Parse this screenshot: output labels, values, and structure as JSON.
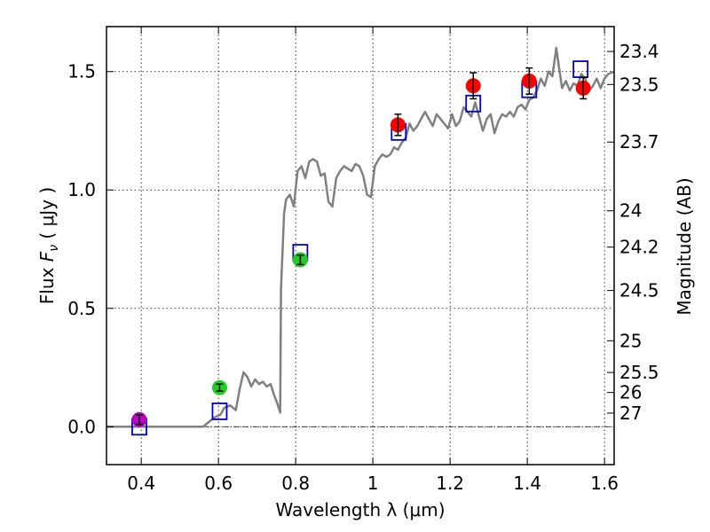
{
  "chart_data": {
    "type": "scatter",
    "xlabel": "Wavelength  λ (μm)",
    "ylabel_parts": [
      "Flux  ",
      "F",
      "ν",
      "  ( μJy )"
    ],
    "y2label": "Magnitude (AB)",
    "xlim": [
      0.31,
      1.625
    ],
    "ylim": [
      -0.16,
      1.69
    ],
    "grid": true,
    "xticks": [
      {
        "value": 0.4,
        "label": "0.4"
      },
      {
        "value": 0.6,
        "label": "0.6"
      },
      {
        "value": 0.8,
        "label": "0.8"
      },
      {
        "value": 1.0,
        "label": "1"
      },
      {
        "value": 1.2,
        "label": "1.2"
      },
      {
        "value": 1.4,
        "label": "1.4"
      },
      {
        "value": 1.6,
        "label": "1.6"
      }
    ],
    "yticks": [
      {
        "value": 0.0,
        "label": "0.0"
      },
      {
        "value": 0.5,
        "label": "0.5"
      },
      {
        "value": 1.0,
        "label": "1.0"
      },
      {
        "value": 1.5,
        "label": "1.5"
      }
    ],
    "mag_ticks": [
      {
        "value": 23.4,
        "label": "23.4"
      },
      {
        "value": 23.5,
        "label": "23.5"
      },
      {
        "value": 23.7,
        "label": "23.7"
      },
      {
        "value": 24,
        "label": "24"
      },
      {
        "value": 24.2,
        "label": "24.2"
      },
      {
        "value": 24.5,
        "label": "24.5"
      },
      {
        "value": 25,
        "label": "25"
      },
      {
        "value": 25.5,
        "label": "25.5"
      },
      {
        "value": 26,
        "label": "26"
      },
      {
        "value": 27,
        "label": "27"
      }
    ],
    "template_color": "#808080",
    "template": [
      [
        0.31,
        0.0
      ],
      [
        0.56,
        0.0
      ],
      [
        0.575,
        0.02
      ],
      [
        0.59,
        0.04
      ],
      [
        0.605,
        0.05
      ],
      [
        0.615,
        0.08
      ],
      [
        0.63,
        0.09
      ],
      [
        0.645,
        0.07
      ],
      [
        0.655,
        0.16
      ],
      [
        0.665,
        0.23
      ],
      [
        0.675,
        0.21
      ],
      [
        0.685,
        0.17
      ],
      [
        0.695,
        0.2
      ],
      [
        0.705,
        0.18
      ],
      [
        0.715,
        0.19
      ],
      [
        0.725,
        0.17
      ],
      [
        0.735,
        0.18
      ],
      [
        0.745,
        0.13
      ],
      [
        0.752,
        0.1
      ],
      [
        0.76,
        0.06
      ],
      [
        0.762,
        0.58
      ],
      [
        0.765,
        0.7
      ],
      [
        0.77,
        0.9
      ],
      [
        0.775,
        0.96
      ],
      [
        0.785,
        0.98
      ],
      [
        0.795,
        0.93
      ],
      [
        0.805,
        1.08
      ],
      [
        0.815,
        1.1
      ],
      [
        0.825,
        1.05
      ],
      [
        0.835,
        1.12
      ],
      [
        0.845,
        1.13
      ],
      [
        0.855,
        1.12
      ],
      [
        0.865,
        1.06
      ],
      [
        0.875,
        1.07
      ],
      [
        0.885,
        0.95
      ],
      [
        0.895,
        0.93
      ],
      [
        0.905,
        1.05
      ],
      [
        0.915,
        1.08
      ],
      [
        0.925,
        1.1
      ],
      [
        0.935,
        1.09
      ],
      [
        0.945,
        1.08
      ],
      [
        0.955,
        1.11
      ],
      [
        0.965,
        1.1
      ],
      [
        0.975,
        1.06
      ],
      [
        0.985,
        0.98
      ],
      [
        0.995,
        0.97
      ],
      [
        1.005,
        1.1
      ],
      [
        1.015,
        1.13
      ],
      [
        1.025,
        1.15
      ],
      [
        1.035,
        1.14
      ],
      [
        1.045,
        1.15
      ],
      [
        1.055,
        1.18
      ],
      [
        1.065,
        1.17
      ],
      [
        1.075,
        1.2
      ],
      [
        1.085,
        1.22
      ],
      [
        1.095,
        1.28
      ],
      [
        1.105,
        1.25
      ],
      [
        1.115,
        1.27
      ],
      [
        1.125,
        1.3
      ],
      [
        1.135,
        1.33
      ],
      [
        1.145,
        1.3
      ],
      [
        1.155,
        1.27
      ],
      [
        1.165,
        1.32
      ],
      [
        1.175,
        1.3
      ],
      [
        1.185,
        1.28
      ],
      [
        1.195,
        1.26
      ],
      [
        1.205,
        1.32
      ],
      [
        1.215,
        1.27
      ],
      [
        1.225,
        1.29
      ],
      [
        1.235,
        1.35
      ],
      [
        1.245,
        1.33
      ],
      [
        1.255,
        1.31
      ],
      [
        1.265,
        1.37
      ],
      [
        1.275,
        1.31
      ],
      [
        1.285,
        1.25
      ],
      [
        1.295,
        1.3
      ],
      [
        1.305,
        1.32
      ],
      [
        1.315,
        1.24
      ],
      [
        1.325,
        1.29
      ],
      [
        1.335,
        1.32
      ],
      [
        1.345,
        1.31
      ],
      [
        1.355,
        1.33
      ],
      [
        1.365,
        1.31
      ],
      [
        1.375,
        1.35
      ],
      [
        1.385,
        1.36
      ],
      [
        1.395,
        1.34
      ],
      [
        1.405,
        1.38
      ],
      [
        1.415,
        1.39
      ],
      [
        1.425,
        1.42
      ],
      [
        1.435,
        1.47
      ],
      [
        1.445,
        1.44
      ],
      [
        1.455,
        1.5
      ],
      [
        1.465,
        1.48
      ],
      [
        1.475,
        1.6
      ],
      [
        1.482,
        1.52
      ],
      [
        1.49,
        1.43
      ],
      [
        1.5,
        1.46
      ],
      [
        1.51,
        1.42
      ],
      [
        1.52,
        1.45
      ],
      [
        1.53,
        1.44
      ],
      [
        1.54,
        1.49
      ],
      [
        1.55,
        1.47
      ],
      [
        1.56,
        1.42
      ],
      [
        1.57,
        1.44
      ],
      [
        1.58,
        1.47
      ],
      [
        1.59,
        1.43
      ],
      [
        1.6,
        1.47
      ],
      [
        1.61,
        1.49
      ],
      [
        1.625,
        1.5
      ]
    ],
    "model_color": "#0000cc",
    "model_points": [
      {
        "x": 0.395,
        "y": 0.0
      },
      {
        "x": 0.603,
        "y": 0.065
      },
      {
        "x": 0.812,
        "y": 0.735
      },
      {
        "x": 1.067,
        "y": 1.245
      },
      {
        "x": 1.26,
        "y": 1.365
      },
      {
        "x": 1.405,
        "y": 1.425
      },
      {
        "x": 1.538,
        "y": 1.51
      }
    ],
    "observations": [
      {
        "x": 0.395,
        "y": 0.03,
        "err": 0.02,
        "color": "#bb00bb"
      },
      {
        "x": 0.603,
        "y": 0.165,
        "err": 0.015,
        "color": "#22cc22"
      },
      {
        "x": 0.812,
        "y": 0.705,
        "err": 0.02,
        "color": "#22cc22"
      },
      {
        "x": 1.065,
        "y": 1.275,
        "err": 0.045,
        "color": "#ff0000"
      },
      {
        "x": 1.26,
        "y": 1.44,
        "err": 0.055,
        "color": "#ff0000"
      },
      {
        "x": 1.405,
        "y": 1.46,
        "err": 0.055,
        "color": "#ff0000"
      },
      {
        "x": 1.545,
        "y": 1.43,
        "err": 0.045,
        "color": "#ff0000"
      }
    ]
  }
}
